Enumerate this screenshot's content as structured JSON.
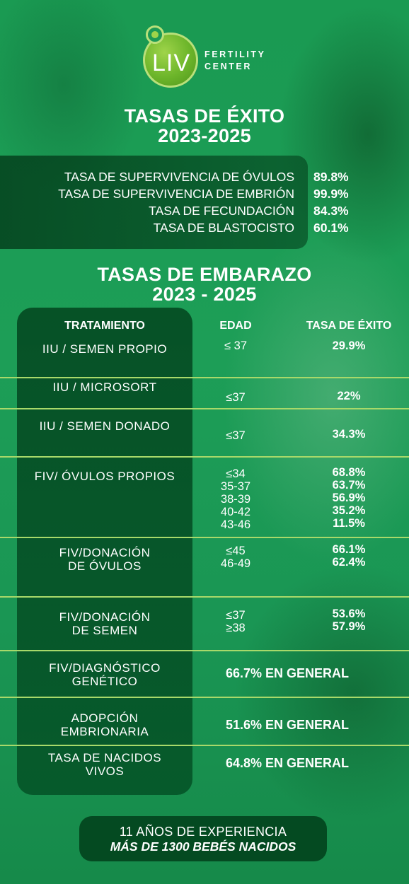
{
  "brand": {
    "logo_text": "LIV",
    "subtitle_line1": "FERTILITY",
    "subtitle_line2": "CENTER",
    "colors": {
      "logo_green": "#6cb52a",
      "background": "#1a9a52",
      "panel_dark": "#003c19",
      "divider": "#a8d96a"
    }
  },
  "success": {
    "title_line1": "TASAS DE ÉXITO",
    "title_line2": "2023-2025",
    "rows": [
      {
        "label": "TASA DE SUPERVIVENCIA DE ÓVULOS",
        "value": "89.8%"
      },
      {
        "label": "TASA DE SUPERVIVENCIA DE EMBRIÓN",
        "value": "99.9%"
      },
      {
        "label": "TASA DE FECUNDACIÓN",
        "value": "84.3%"
      },
      {
        "label": "TASA DE BLASTOCISTO",
        "value": "60.1%"
      }
    ]
  },
  "pregnancy": {
    "title_line1": "TASAS DE EMBARAZO",
    "title_line2": "2023 - 2025",
    "headers": {
      "treatment": "TRATAMIENTO",
      "age": "EDAD",
      "rate": "TASA DE ÉXITO"
    },
    "rows": [
      {
        "treatment": [
          "IIU / SEMEN PROPIO"
        ],
        "ages": [
          "≤ 37"
        ],
        "rates": [
          "29.9%"
        ]
      },
      {
        "treatment": [
          "IIU / MICROSORT"
        ],
        "ages": [
          "≤37"
        ],
        "rates": [
          "22%"
        ]
      },
      {
        "treatment": [
          "IIU / SEMEN DONADO"
        ],
        "ages": [
          "≤37"
        ],
        "rates": [
          "34.3%"
        ]
      },
      {
        "treatment": [
          "FIV/ ÓVULOS PROPIOS"
        ],
        "ages": [
          "≤34",
          "35-37",
          "38-39",
          "40-42",
          "43-46"
        ],
        "rates": [
          "68.8%",
          "63.7%",
          "56.9%",
          "35.2%",
          "11.5%"
        ]
      },
      {
        "treatment": [
          "FIV/DONACIÓN",
          "DE ÓVULOS"
        ],
        "ages": [
          "≤45",
          "46-49"
        ],
        "rates": [
          "66.1%",
          "62.4%"
        ]
      },
      {
        "treatment": [
          "FIV/DONACIÓN",
          "DE SEMEN"
        ],
        "ages": [
          "≤37",
          "≥38"
        ],
        "rates": [
          "53.6%",
          "57.9%"
        ]
      },
      {
        "treatment": [
          "FIV/DIAGNÓSTICO",
          "GENÉTICO"
        ],
        "general": "66.7% EN GENERAL"
      },
      {
        "treatment": [
          "ADOPCIÓN",
          "EMBRIONARIA"
        ],
        "general": "51.6% EN GENERAL"
      },
      {
        "treatment": [
          "TASA DE NACIDOS",
          "VIVOS"
        ],
        "general": "64.8% EN GENERAL"
      }
    ]
  },
  "footer": {
    "line1": "11 AÑOS DE EXPERIENCIA",
    "line2": "MÁS DE 1300 BEBÉS NACIDOS"
  }
}
